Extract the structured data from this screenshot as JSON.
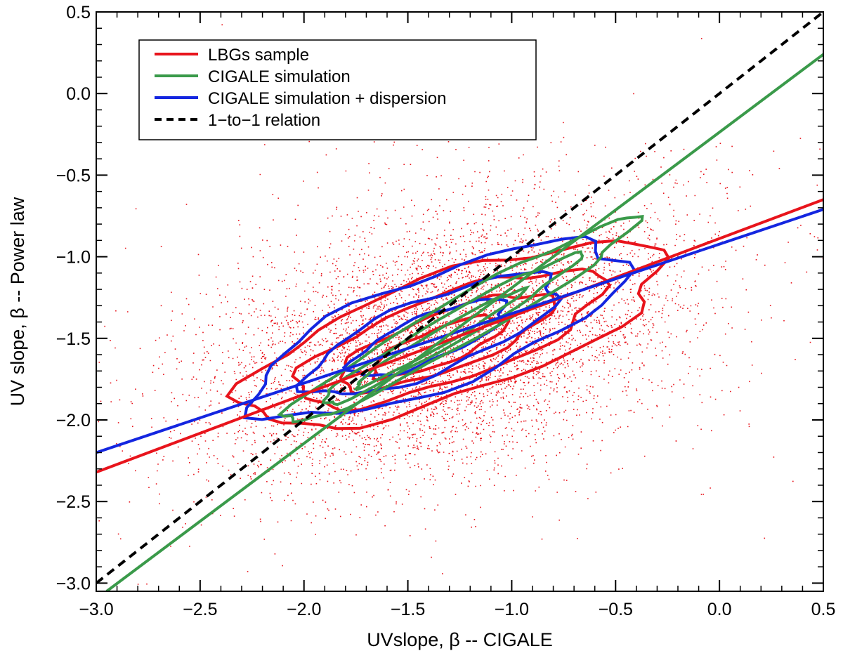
{
  "chart_data": {
    "type": "scatter",
    "title": "",
    "xlabel": "UVslope, β -- CIGALE",
    "ylabel": "UV slope, β -- Power law",
    "xlim": [
      -3.0,
      0.5
    ],
    "ylim": [
      -3.05,
      0.5
    ],
    "xticks": [
      -3.0,
      -2.5,
      -2.0,
      -1.5,
      -1.0,
      -0.5,
      0.0,
      0.5
    ],
    "xtick_labels": [
      "−3.0",
      "−2.5",
      "−2.0",
      "−1.5",
      "−1.0",
      "−0.5",
      "0.0",
      "0.5"
    ],
    "yticks": [
      -3.0,
      -2.5,
      -2.0,
      -1.5,
      -1.0,
      -0.5,
      0.0,
      0.5
    ],
    "ytick_labels": [
      "−3.0",
      "−2.5",
      "−2.0",
      "−1.5",
      "−1.0",
      "−0.5",
      "0.0",
      "0.5"
    ],
    "legend_position": "top-left",
    "legend": [
      {
        "label": "LBGs sample",
        "color": "#e8141c",
        "style": "solid"
      },
      {
        "label": "CIGALE simulation",
        "color": "#3a9a4a",
        "style": "solid"
      },
      {
        "label": "CIGALE simulation + dispersion",
        "color": "#1426e0",
        "style": "solid"
      },
      {
        "label": "1−to−1 relation",
        "color": "#000000",
        "style": "dashed"
      }
    ],
    "scatter": {
      "name": "LBGs sample points",
      "color": "#e8141c",
      "approx_count": 6000,
      "center": [
        -1.3,
        -1.5
      ],
      "spread_along_fit": 0.6,
      "spread_perpendicular": 0.35
    },
    "series": [
      {
        "name": "LBGs sample fit",
        "color": "#e8141c",
        "x": [
          -3.0,
          0.5
        ],
        "y": [
          -2.32,
          -0.65
        ]
      },
      {
        "name": "CIGALE simulation + dispersion fit",
        "color": "#1426e0",
        "x": [
          -3.0,
          0.5
        ],
        "y": [
          -2.2,
          -0.71
        ]
      },
      {
        "name": "CIGALE simulation fit",
        "color": "#3a9a4a",
        "x": [
          -2.95,
          0.5
        ],
        "y": [
          -3.05,
          0.24
        ]
      },
      {
        "name": "1-to-1 relation",
        "color": "#000000",
        "dashed": true,
        "x": [
          -3.0,
          0.5
        ],
        "y": [
          -3.0,
          0.5
        ]
      }
    ],
    "contours": [
      {
        "series": "LBGs sample",
        "color": "#e8141c",
        "center": [
          -1.28,
          -1.48
        ],
        "semi_axes": [
          1.15,
          0.38
        ],
        "angle_deg": 30
      },
      {
        "series": "LBGs sample",
        "color": "#e8141c",
        "center": [
          -1.3,
          -1.5
        ],
        "semi_axes": [
          0.85,
          0.27
        ],
        "angle_deg": 31
      },
      {
        "series": "LBGs sample",
        "color": "#e8141c",
        "center": [
          -1.32,
          -1.52
        ],
        "semi_axes": [
          0.6,
          0.18
        ],
        "angle_deg": 32
      },
      {
        "series": "LBGs sample",
        "color": "#e8141c",
        "center": [
          -1.35,
          -1.55
        ],
        "semi_axes": [
          0.38,
          0.11
        ],
        "angle_deg": 33
      },
      {
        "series": "CIGALE simulation + dispersion",
        "color": "#1426e0",
        "center": [
          -1.35,
          -1.45
        ],
        "semi_axes": [
          1.05,
          0.35
        ],
        "angle_deg": 33
      },
      {
        "series": "CIGALE simulation + dispersion",
        "color": "#1426e0",
        "center": [
          -1.38,
          -1.48
        ],
        "semi_axes": [
          0.72,
          0.23
        ],
        "angle_deg": 34
      },
      {
        "series": "CIGALE simulation + dispersion",
        "color": "#1426e0",
        "center": [
          -1.4,
          -1.5
        ],
        "semi_axes": [
          0.45,
          0.14
        ],
        "angle_deg": 35
      },
      {
        "series": "CIGALE simulation",
        "color": "#3a9a4a",
        "center": [
          -1.25,
          -1.4
        ],
        "semi_axes": [
          1.15,
          0.14
        ],
        "angle_deg": 43
      },
      {
        "series": "CIGALE simulation",
        "color": "#3a9a4a",
        "center": [
          -1.3,
          -1.45
        ],
        "semi_axes": [
          0.85,
          0.09
        ],
        "angle_deg": 43
      },
      {
        "series": "CIGALE simulation",
        "color": "#3a9a4a",
        "center": [
          -1.35,
          -1.5
        ],
        "semi_axes": [
          0.55,
          0.05
        ],
        "angle_deg": 43
      }
    ]
  }
}
